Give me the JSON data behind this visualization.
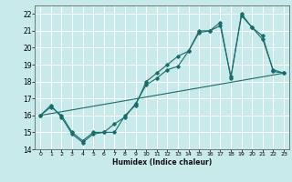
{
  "title": "",
  "xlabel": "Humidex (Indice chaleur)",
  "ylabel": "",
  "bg_color": "#c8eaea",
  "grid_color": "#ffffff",
  "line_color": "#1a6b6b",
  "xlim": [
    -0.5,
    23.5
  ],
  "ylim": [
    14,
    22.5
  ],
  "yticks": [
    14,
    15,
    16,
    17,
    18,
    19,
    20,
    21,
    22
  ],
  "xticks": [
    0,
    1,
    2,
    3,
    4,
    5,
    6,
    7,
    8,
    9,
    10,
    11,
    12,
    13,
    14,
    15,
    16,
    17,
    18,
    19,
    20,
    21,
    22,
    23
  ],
  "series": [
    {
      "x": [
        0,
        1,
        2,
        3,
        4,
        5,
        6,
        7,
        8,
        9,
        10,
        11,
        12,
        13,
        14,
        15,
        16,
        17,
        18,
        19,
        20,
        21,
        22,
        23
      ],
      "y": [
        16.0,
        16.5,
        16.0,
        15.0,
        14.5,
        15.0,
        15.0,
        15.0,
        16.0,
        16.6,
        18.0,
        18.5,
        19.0,
        19.5,
        19.8,
        21.0,
        21.0,
        21.5,
        18.2,
        22.0,
        21.2,
        20.7,
        18.6,
        18.5
      ]
    },
    {
      "x": [
        0,
        1,
        2,
        3,
        4,
        5,
        6,
        7,
        8,
        9,
        10,
        11,
        12,
        13,
        14,
        15,
        16,
        17,
        18,
        19,
        20,
        21,
        22,
        23
      ],
      "y": [
        16.0,
        16.6,
        15.9,
        14.9,
        14.4,
        14.9,
        15.0,
        15.5,
        15.9,
        16.7,
        17.8,
        18.2,
        18.7,
        18.9,
        19.8,
        20.9,
        21.0,
        21.3,
        18.3,
        21.9,
        21.2,
        20.5,
        18.7,
        18.5
      ]
    },
    {
      "x": [
        0,
        23
      ],
      "y": [
        16.0,
        18.5
      ]
    }
  ]
}
